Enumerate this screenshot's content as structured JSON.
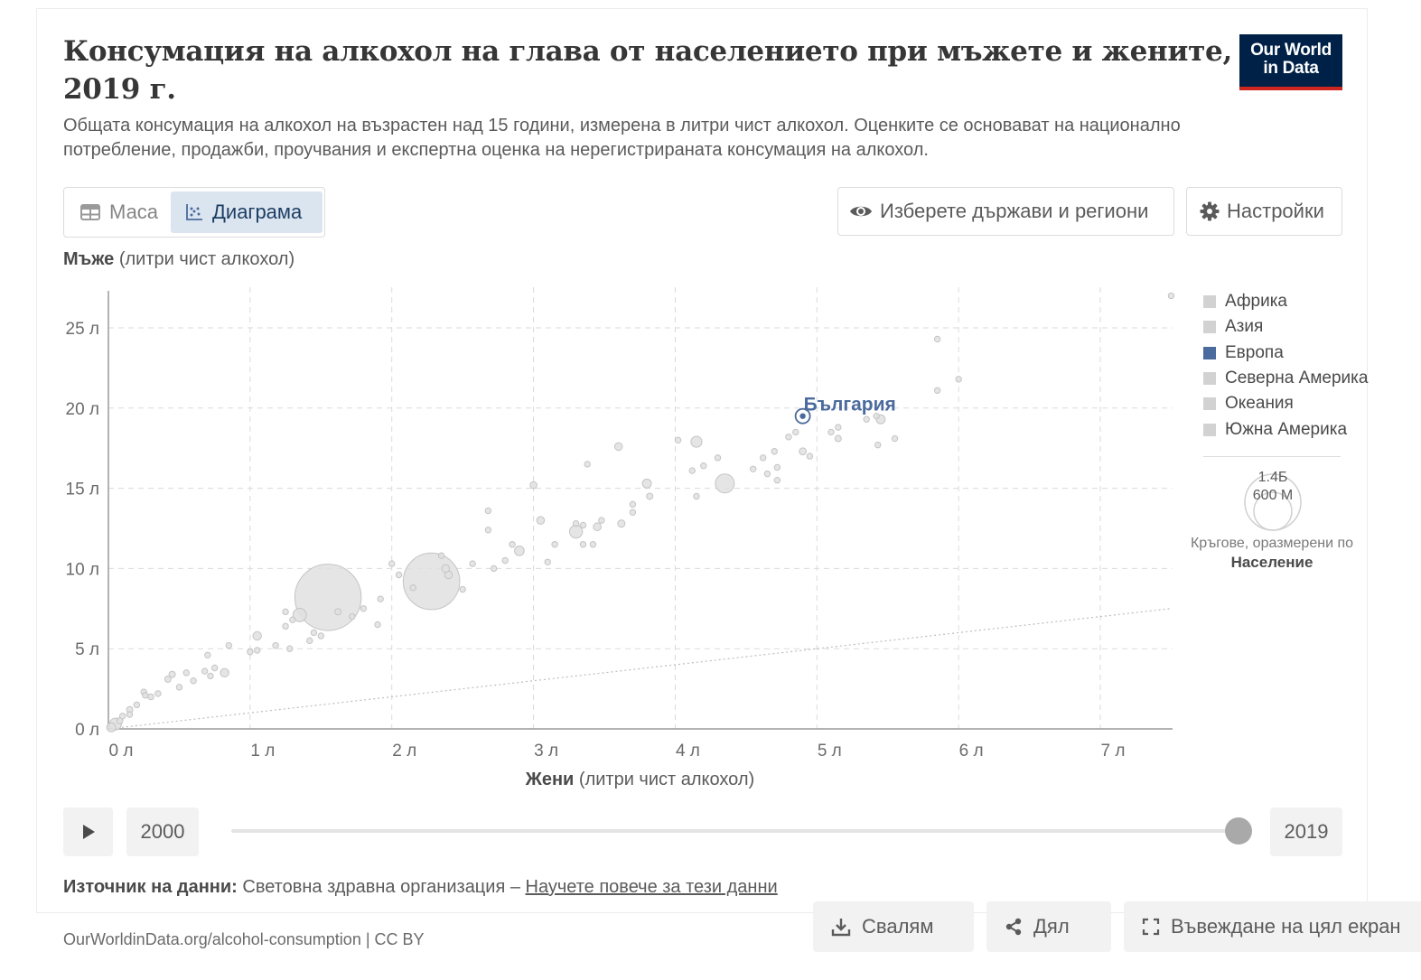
{
  "header": {
    "title": "Консумация на алкохол на глава от населението при мъжете и жените, 2019 г.",
    "subtitle": "Общата консумация на алкохол на възрастен над 15 години, измерена в литри чист алкохол. Оценките се основават на национално потребление, продажби, проучвания и експертна оценка на нерегистрираната консумация на алкохол.",
    "logo_line1": "Our World",
    "logo_line2": "in Data"
  },
  "tabs": {
    "table_label": "Маса",
    "chart_label": "Диаграма"
  },
  "controls": {
    "select_label": "Изберете държави и региони",
    "settings_label": "Настройки"
  },
  "axes": {
    "y_label_bold": "Мъже",
    "y_label_rest": " (литри чист алкохол)",
    "x_label_bold": "Жени",
    "x_label_rest": " (литри чист алкохол)"
  },
  "legend": {
    "items": [
      {
        "name": "Африка",
        "color": "#d2d2d2"
      },
      {
        "name": "Азия",
        "color": "#d2d2d2"
      },
      {
        "name": "Европа",
        "color": "#4b6a9d"
      },
      {
        "name": "Северна Америка",
        "color": "#d2d2d2"
      },
      {
        "name": "Океания",
        "color": "#d2d2d2"
      },
      {
        "name": "Южна Америка",
        "color": "#d2d2d2"
      }
    ],
    "size_large": "1.4Б",
    "size_small": "600 М",
    "size_caption": "Кръгове, оразмерени по",
    "size_variable": "Население"
  },
  "timeline": {
    "start_year": "2000",
    "end_year": "2019",
    "selected": "2019"
  },
  "footer": {
    "source_label": "Източник на данни:",
    "source_text": " Световна здравна организация – ",
    "source_link": "Научете повече за тези данни",
    "url": "OurWorldinData.org/alcohol-consumption | CC BY",
    "download_label": "Свалям",
    "share_label": "Дял",
    "fullscreen_label": "Въвеждане на цял екран"
  },
  "chart_data": {
    "type": "scatter",
    "xlabel": "Жени (литри чист алкохол)",
    "ylabel": "Мъже (литри чист алкохол)",
    "xlim": [
      0,
      7.5
    ],
    "ylim": [
      0,
      27
    ],
    "x_ticks": [
      "0 л",
      "1 л",
      "2 л",
      "3 л",
      "4 л",
      "5 л",
      "6 л",
      "7 л"
    ],
    "y_ticks": [
      "0 л",
      "5 л",
      "10 л",
      "15 л",
      "20 л",
      "25 л"
    ],
    "x_tick_values": [
      0,
      1,
      2,
      3,
      4,
      5,
      6,
      7
    ],
    "y_tick_values": [
      0,
      5,
      10,
      15,
      20,
      25
    ],
    "grid": true,
    "reference_line": {
      "style": "dotted",
      "slope": 1
    },
    "size_variable": "Население",
    "highlight": {
      "label": "България",
      "x": 4.9,
      "y": 19.5,
      "region": "Европа"
    },
    "points": [
      {
        "x": 7.5,
        "y": 27.0,
        "s": 0.2
      },
      {
        "x": 5.85,
        "y": 24.3,
        "s": 0.2
      },
      {
        "x": 5.85,
        "y": 21.1,
        "s": 0.2
      },
      {
        "x": 6.0,
        "y": 21.8,
        "s": 0.2
      },
      {
        "x": 5.45,
        "y": 19.3,
        "s": 2
      },
      {
        "x": 5.15,
        "y": 18.1,
        "s": 1
      },
      {
        "x": 5.15,
        "y": 18.8,
        "s": 0.5
      },
      {
        "x": 5.1,
        "y": 18.5,
        "s": 0.4
      },
      {
        "x": 5.42,
        "y": 19.5,
        "s": 0.3
      },
      {
        "x": 5.55,
        "y": 18.1,
        "s": 0.2
      },
      {
        "x": 5.43,
        "y": 17.7,
        "s": 0.2
      },
      {
        "x": 4.9,
        "y": 17.3,
        "s": 1.2
      },
      {
        "x": 4.95,
        "y": 17.0,
        "s": 0.4
      },
      {
        "x": 4.85,
        "y": 18.5,
        "s": 0.3
      },
      {
        "x": 4.8,
        "y": 18.2,
        "s": 0.3
      },
      {
        "x": 4.62,
        "y": 16.9,
        "s": 0.2
      },
      {
        "x": 4.7,
        "y": 17.3,
        "s": 0.3
      },
      {
        "x": 4.72,
        "y": 16.3,
        "s": 0.3
      },
      {
        "x": 4.65,
        "y": 15.9,
        "s": 0.2
      },
      {
        "x": 4.72,
        "y": 15.5,
        "s": 0.2
      },
      {
        "x": 4.35,
        "y": 15.3,
        "s": 9
      },
      {
        "x": 4.15,
        "y": 17.9,
        "s": 3
      },
      {
        "x": 4.2,
        "y": 16.4,
        "s": 0.3
      },
      {
        "x": 4.12,
        "y": 16.1,
        "s": 0.2
      },
      {
        "x": 4.15,
        "y": 14.5,
        "s": 0.3
      },
      {
        "x": 4.3,
        "y": 16.9,
        "s": 0.2
      },
      {
        "x": 4.02,
        "y": 18.0,
        "s": 0.2
      },
      {
        "x": 3.6,
        "y": 17.6,
        "s": 1.5
      },
      {
        "x": 3.8,
        "y": 15.3,
        "s": 2
      },
      {
        "x": 3.82,
        "y": 14.5,
        "s": 1
      },
      {
        "x": 3.7,
        "y": 13.5,
        "s": 0.6
      },
      {
        "x": 3.7,
        "y": 14.0,
        "s": 0.3
      },
      {
        "x": 3.62,
        "y": 12.8,
        "s": 1.3
      },
      {
        "x": 3.48,
        "y": 13.0,
        "s": 0.6
      },
      {
        "x": 3.45,
        "y": 12.6,
        "s": 1.5
      },
      {
        "x": 3.3,
        "y": 12.3,
        "s": 4.2
      },
      {
        "x": 3.35,
        "y": 11.5,
        "s": 0.5
      },
      {
        "x": 3.42,
        "y": 11.5,
        "s": 0.4
      },
      {
        "x": 3.35,
        "y": 12.7,
        "s": 0.5
      },
      {
        "x": 3.3,
        "y": 12.8,
        "s": 0.3
      },
      {
        "x": 3.38,
        "y": 16.5,
        "s": 0.2
      },
      {
        "x": 3.05,
        "y": 13.0,
        "s": 1.5
      },
      {
        "x": 3.0,
        "y": 15.2,
        "s": 1.2
      },
      {
        "x": 2.9,
        "y": 11.1,
        "s": 2.3
      },
      {
        "x": 2.85,
        "y": 11.5,
        "s": 0.4
      },
      {
        "x": 3.15,
        "y": 11.5,
        "s": 0.4
      },
      {
        "x": 2.68,
        "y": 12.4,
        "s": 0.4
      },
      {
        "x": 2.68,
        "y": 13.6,
        "s": 0.3
      },
      {
        "x": 2.8,
        "y": 10.5,
        "s": 0.5
      },
      {
        "x": 2.72,
        "y": 10.0,
        "s": 0.4
      },
      {
        "x": 3.1,
        "y": 10.4,
        "s": 0.4
      },
      {
        "x": 2.57,
        "y": 10.3,
        "s": 0.4
      },
      {
        "x": 2.28,
        "y": 9.2,
        "s": 80
      },
      {
        "x": 2.4,
        "y": 9.6,
        "s": 1.5
      },
      {
        "x": 2.38,
        "y": 10.0,
        "s": 1.5
      },
      {
        "x": 2.35,
        "y": 10.8,
        "s": 0.5
      },
      {
        "x": 2.5,
        "y": 8.7,
        "s": 0.5
      },
      {
        "x": 2.15,
        "y": 8.8,
        "s": 0.5
      },
      {
        "x": 2.05,
        "y": 9.6,
        "s": 0.4
      },
      {
        "x": 2.0,
        "y": 10.3,
        "s": 0.3
      },
      {
        "x": 1.55,
        "y": 8.2,
        "s": 110
      },
      {
        "x": 1.35,
        "y": 7.1,
        "s": 4.5
      },
      {
        "x": 1.62,
        "y": 7.3,
        "s": 1
      },
      {
        "x": 1.72,
        "y": 7.0,
        "s": 0.5
      },
      {
        "x": 1.8,
        "y": 7.5,
        "s": 0.8
      },
      {
        "x": 1.92,
        "y": 8.1,
        "s": 0.8
      },
      {
        "x": 1.9,
        "y": 6.5,
        "s": 0.4
      },
      {
        "x": 1.5,
        "y": 5.8,
        "s": 0.8
      },
      {
        "x": 1.45,
        "y": 6.0,
        "s": 0.5
      },
      {
        "x": 1.42,
        "y": 5.5,
        "s": 0.5
      },
      {
        "x": 1.3,
        "y": 6.8,
        "s": 0.4
      },
      {
        "x": 1.25,
        "y": 6.4,
        "s": 0.6
      },
      {
        "x": 1.18,
        "y": 5.2,
        "s": 0.6
      },
      {
        "x": 1.28,
        "y": 5.0,
        "s": 0.5
      },
      {
        "x": 1.25,
        "y": 7.3,
        "s": 0.4
      },
      {
        "x": 1.05,
        "y": 5.8,
        "s": 1.8
      },
      {
        "x": 1.0,
        "y": 4.8,
        "s": 0.8
      },
      {
        "x": 1.05,
        "y": 4.9,
        "s": 0.5
      },
      {
        "x": 0.82,
        "y": 3.5,
        "s": 1.8
      },
      {
        "x": 0.75,
        "y": 3.8,
        "s": 0.5
      },
      {
        "x": 0.72,
        "y": 3.3,
        "s": 0.5
      },
      {
        "x": 0.68,
        "y": 3.6,
        "s": 0.6
      },
      {
        "x": 0.7,
        "y": 4.6,
        "s": 0.6
      },
      {
        "x": 0.6,
        "y": 3.0,
        "s": 0.4
      },
      {
        "x": 0.55,
        "y": 3.5,
        "s": 0.4
      },
      {
        "x": 0.5,
        "y": 2.6,
        "s": 0.5
      },
      {
        "x": 0.45,
        "y": 3.4,
        "s": 1
      },
      {
        "x": 0.42,
        "y": 3.1,
        "s": 1
      },
      {
        "x": 0.35,
        "y": 2.2,
        "s": 0.4
      },
      {
        "x": 0.3,
        "y": 2.0,
        "s": 0.4
      },
      {
        "x": 0.25,
        "y": 2.3,
        "s": 0.3
      },
      {
        "x": 0.2,
        "y": 1.5,
        "s": 0.5
      },
      {
        "x": 0.15,
        "y": 1.2,
        "s": 1
      },
      {
        "x": 0.15,
        "y": 0.9,
        "s": 0.6
      },
      {
        "x": 0.1,
        "y": 0.8,
        "s": 0.6
      },
      {
        "x": 0.05,
        "y": 0.3,
        "s": 3.5
      },
      {
        "x": 0.02,
        "y": 0.1,
        "s": 2
      },
      {
        "x": 0.08,
        "y": 0.5,
        "s": 1
      },
      {
        "x": 0.26,
        "y": 2.1,
        "s": 0.3
      },
      {
        "x": 0.85,
        "y": 5.2,
        "s": 0.3
      },
      {
        "x": 4.55,
        "y": 16.2,
        "s": 0.3
      },
      {
        "x": 5.35,
        "y": 19.3,
        "s": 0.3
      }
    ]
  }
}
